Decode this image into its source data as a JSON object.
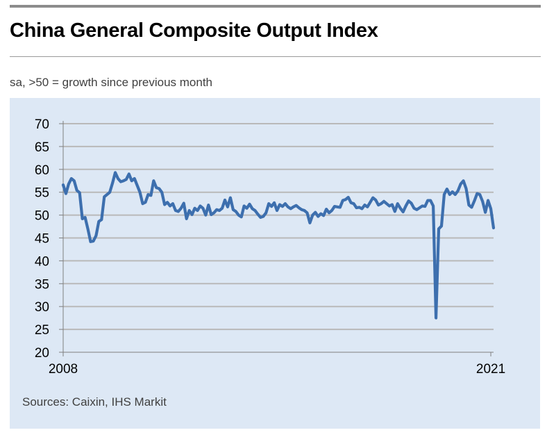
{
  "header": {
    "title": "China General Composite Output Index",
    "subtitle": "sa, >50 = growth since previous month"
  },
  "footer": {
    "source": "Sources: Caixin, IHS Markit"
  },
  "chart_data": {
    "type": "line",
    "title": "China General Composite Output Index",
    "subtitle": "sa, >50 = growth since previous month",
    "xlabel": "",
    "ylabel": "",
    "ylim": [
      20,
      70
    ],
    "y_ticks": [
      "70",
      "65",
      "60",
      "55",
      "50",
      "45",
      "40",
      "35",
      "30",
      "25",
      "20"
    ],
    "x_tick_labels": [
      {
        "label": "2008",
        "t": 0
      },
      {
        "label": "2021",
        "t": 156
      }
    ],
    "grid": true,
    "line_color": "#3d6fae",
    "series": [
      {
        "name": "Composite Output Index",
        "t_start": 0,
        "values": [
          56.6,
          54.7,
          56.8,
          58.0,
          57.5,
          55.4,
          54.9,
          49.2,
          49.5,
          47.0,
          44.2,
          44.3,
          45.5,
          48.6,
          49.0,
          54.0,
          54.5,
          55.0,
          57.0,
          59.3,
          58.0,
          57.3,
          57.5,
          57.8,
          59.0,
          57.5,
          58.0,
          56.5,
          55.0,
          52.5,
          52.8,
          54.5,
          54.3,
          57.5,
          56.0,
          55.8,
          55.0,
          52.3,
          52.8,
          52.0,
          52.5,
          51.0,
          50.8,
          51.5,
          52.6,
          49.2,
          51.0,
          50.1,
          51.5,
          51.0,
          52.0,
          51.5,
          50.0,
          52.2,
          50.1,
          50.5,
          51.2,
          51.0,
          51.5,
          53.3,
          51.8,
          53.8,
          51.2,
          50.8,
          50.0,
          49.6,
          52.0,
          51.5,
          52.4,
          51.4,
          51.0,
          50.2,
          49.5,
          49.7,
          50.5,
          52.5,
          51.9,
          52.7,
          51.0,
          52.3,
          51.9,
          52.5,
          51.8,
          51.4,
          51.8,
          52.1,
          51.6,
          51.2,
          51.0,
          50.5,
          48.3,
          50.0,
          50.6,
          49.7,
          50.3,
          49.9,
          51.3,
          50.5,
          51.0,
          51.9,
          51.8,
          51.7,
          53.2,
          53.4,
          53.9,
          52.7,
          52.5,
          51.6,
          51.7,
          51.4,
          52.2,
          51.8,
          52.8,
          53.8,
          53.3,
          52.2,
          52.5,
          53.0,
          52.5,
          52.0,
          52.3,
          50.8,
          52.5,
          51.5,
          50.7,
          52.0,
          53.1,
          52.6,
          51.5,
          51.2,
          51.6,
          52.0,
          51.9,
          53.2,
          53.2,
          52.0,
          27.5,
          47.0,
          47.6,
          54.5,
          55.7,
          54.5,
          55.1,
          54.5,
          55.3,
          56.8,
          57.5,
          55.8,
          52.2,
          51.7,
          53.1,
          54.7,
          54.5,
          53.0,
          50.6,
          53.2,
          51.4,
          47.2
        ]
      }
    ]
  }
}
